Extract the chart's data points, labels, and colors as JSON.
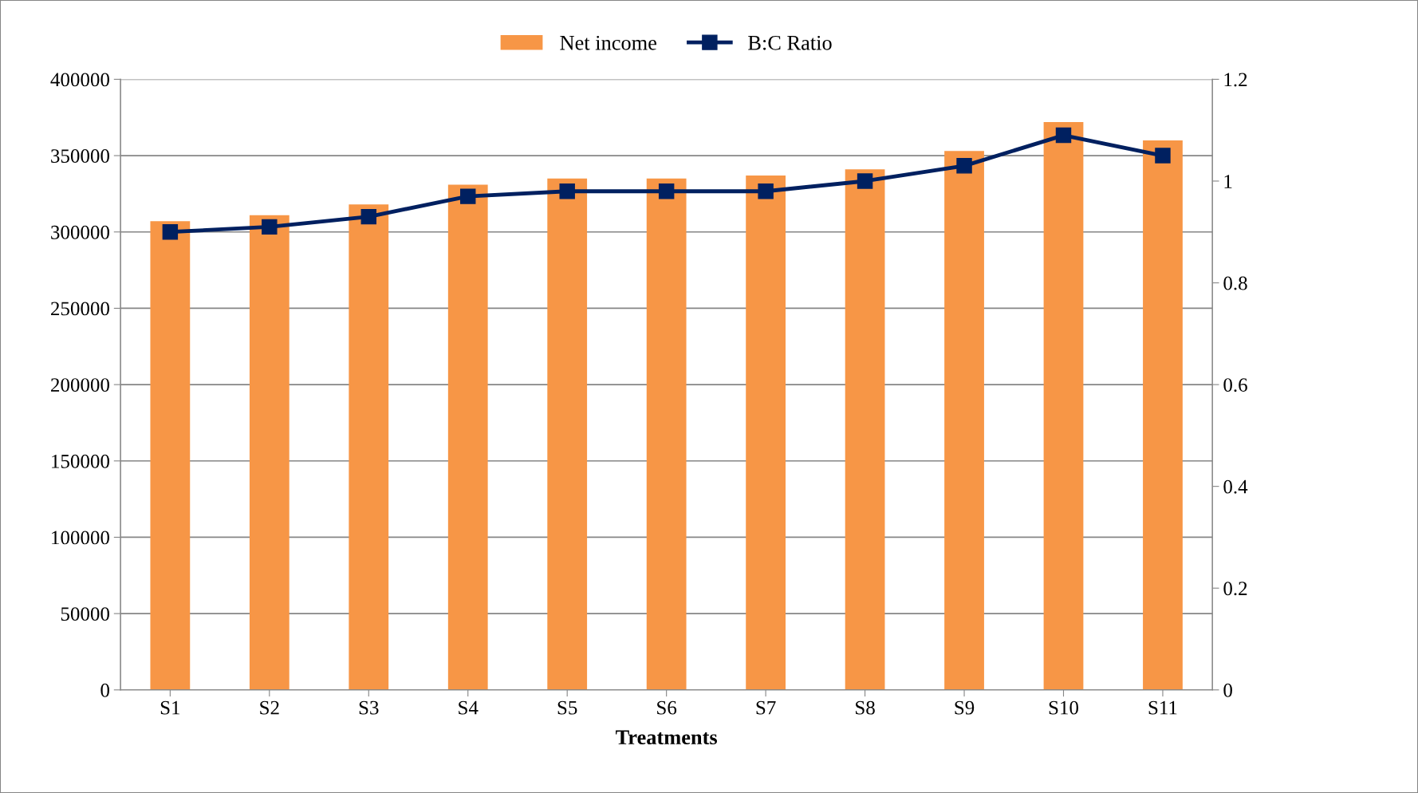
{
  "chart_data": {
    "type": "bar",
    "xlabel": "Treatments",
    "categories": [
      "S1",
      "S2",
      "S3",
      "S4",
      "S5",
      "S6",
      "S7",
      "S8",
      "S9",
      "S10",
      "S11"
    ],
    "series": [
      {
        "name": "Net income",
        "color": "#f79646",
        "values": [
          307000,
          311000,
          318000,
          331000,
          335000,
          335000,
          337000,
          341000,
          353000,
          372000,
          360000
        ]
      },
      {
        "name": "B:C Ratio",
        "type": "line",
        "axis": "y2",
        "color": "#002060",
        "marker": "square",
        "values": [
          0.9,
          0.91,
          0.93,
          0.97,
          0.98,
          0.98,
          0.98,
          1.0,
          1.03,
          1.09,
          1.05
        ]
      }
    ],
    "ylim": [
      0,
      400000
    ],
    "yticks": [
      0,
      50000,
      100000,
      150000,
      200000,
      250000,
      300000,
      350000,
      400000
    ],
    "y2lim": [
      0,
      1.2
    ],
    "y2ticks": [
      0,
      0.2,
      0.4,
      0.6,
      0.8,
      1,
      1.2
    ],
    "grid": "y",
    "legend": "top"
  }
}
